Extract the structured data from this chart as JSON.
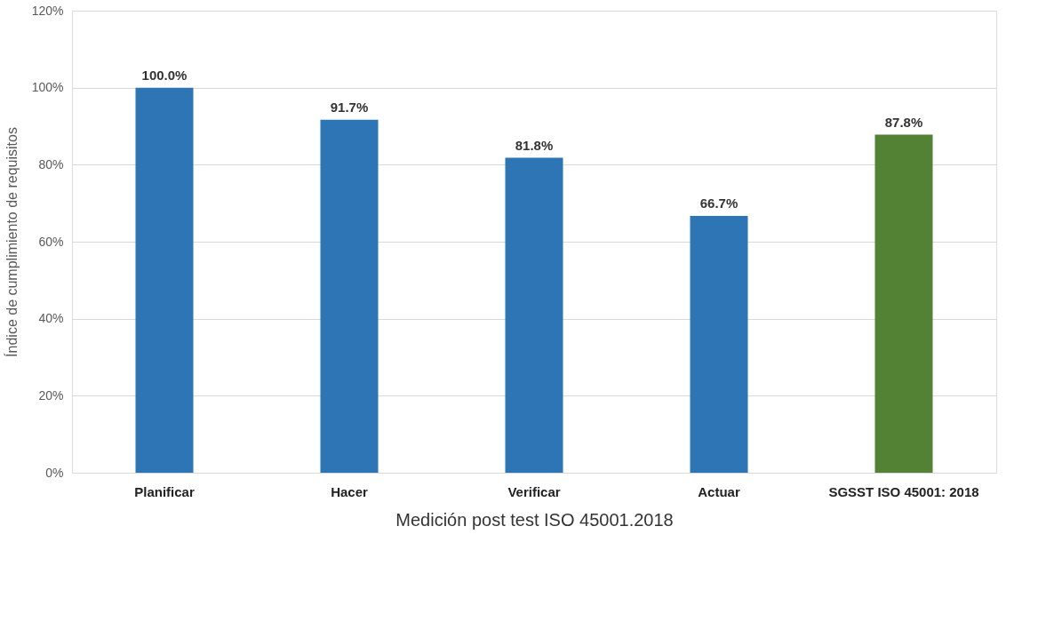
{
  "chart_data": {
    "type": "bar",
    "xlabel": "Medición post test ISO 45001.2018",
    "ylabel": "Índice de cumplimiento de requisitos",
    "categories": [
      "Planificar",
      "Hacer",
      "Verificar",
      "Actuar",
      "SGSST  ISO 45001: 2018"
    ],
    "values": [
      100.0,
      91.7,
      81.8,
      66.7,
      87.8
    ],
    "colors": [
      "#2e75b6",
      "#2e75b6",
      "#2e75b6",
      "#2e75b6",
      "#548235"
    ],
    "value_labels": [
      "100.0%",
      "91.7%",
      "81.8%",
      "66.7%",
      "87.8%"
    ],
    "ylim": [
      0,
      120
    ],
    "yticks": [
      {
        "value": 0,
        "label": "0%"
      },
      {
        "value": 20,
        "label": "20%"
      },
      {
        "value": 40,
        "label": "40%"
      },
      {
        "value": 60,
        "label": "60%"
      },
      {
        "value": 80,
        "label": "80%"
      },
      {
        "value": 100,
        "label": "100%"
      },
      {
        "value": 120,
        "label": "120%"
      }
    ],
    "grid": "y"
  }
}
